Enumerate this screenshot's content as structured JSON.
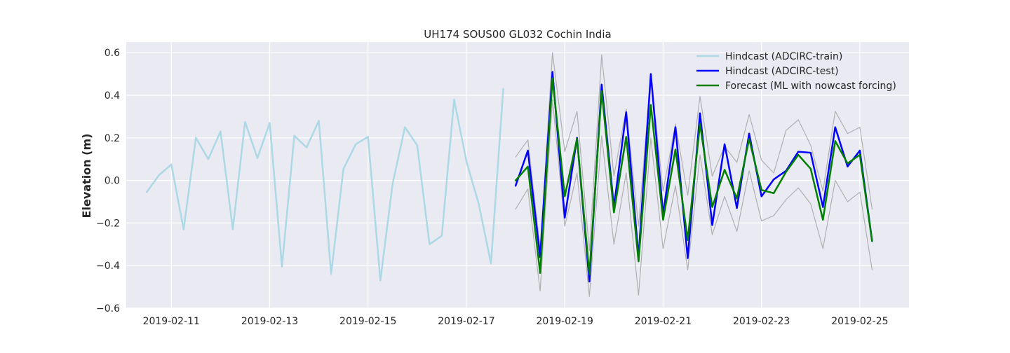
{
  "chart_data": {
    "type": "line",
    "title": "UH174 SOUS00 GL032 Cochin India",
    "xlabel": "",
    "ylabel": "Elevation (m)",
    "x_range": [
      "2019-02-10T02:00",
      "2019-02-26T00:00"
    ],
    "ylim": [
      -0.6,
      0.65
    ],
    "x_ticks": [
      "2019-02-11",
      "2019-02-13",
      "2019-02-15",
      "2019-02-17",
      "2019-02-19",
      "2019-02-21",
      "2019-02-23",
      "2019-02-25"
    ],
    "y_ticks": [
      -0.6,
      -0.4,
      -0.2,
      0.0,
      0.2,
      0.4,
      0.6
    ],
    "y_tick_labels": [
      "−0.6",
      "−0.4",
      "−0.2",
      "0.0",
      "0.2",
      "0.4",
      "0.6"
    ],
    "grid": true,
    "legend_position": "top-right",
    "background": "#eaeaf2",
    "series": [
      {
        "name": "Hindcast (ADCIRC-train)",
        "color": "#add8e6",
        "width": 2.5,
        "x": [
          "2019-02-10T12:00",
          "2019-02-10T18:00",
          "2019-02-11T00:00",
          "2019-02-11T06:00",
          "2019-02-11T12:00",
          "2019-02-11T18:00",
          "2019-02-12T00:00",
          "2019-02-12T06:00",
          "2019-02-12T12:00",
          "2019-02-12T18:00",
          "2019-02-13T00:00",
          "2019-02-13T06:00",
          "2019-02-13T12:00",
          "2019-02-13T18:00",
          "2019-02-14T00:00",
          "2019-02-14T06:00",
          "2019-02-14T12:00",
          "2019-02-14T18:00",
          "2019-02-15T00:00",
          "2019-02-15T06:00",
          "2019-02-15T12:00",
          "2019-02-15T18:00",
          "2019-02-16T00:00",
          "2019-02-16T06:00",
          "2019-02-16T12:00",
          "2019-02-16T18:00",
          "2019-02-17T00:00",
          "2019-02-17T06:00",
          "2019-02-17T12:00",
          "2019-02-17T18:00"
        ],
        "y": [
          -0.055,
          0.025,
          0.075,
          -0.23,
          0.2,
          0.1,
          0.23,
          -0.23,
          0.275,
          0.105,
          0.27,
          -0.405,
          0.21,
          0.155,
          0.28,
          -0.44,
          0.055,
          0.17,
          0.205,
          -0.47,
          -0.015,
          0.25,
          0.165,
          -0.3,
          -0.26,
          0.38,
          0.09,
          -0.11,
          -0.39,
          0.43
        ]
      },
      {
        "name": "Hindcast (ADCIRC-test)",
        "color": "#0000ff",
        "width": 2.5,
        "x": [
          "2019-02-18T00:00",
          "2019-02-18T06:00",
          "2019-02-18T12:00",
          "2019-02-18T18:00",
          "2019-02-19T00:00",
          "2019-02-19T06:00",
          "2019-02-19T12:00",
          "2019-02-19T18:00",
          "2019-02-20T00:00",
          "2019-02-20T06:00",
          "2019-02-20T12:00",
          "2019-02-20T18:00",
          "2019-02-21T00:00",
          "2019-02-21T06:00",
          "2019-02-21T12:00",
          "2019-02-21T18:00",
          "2019-02-22T00:00",
          "2019-02-22T06:00",
          "2019-02-22T12:00",
          "2019-02-22T18:00",
          "2019-02-23T00:00",
          "2019-02-23T06:00",
          "2019-02-23T12:00",
          "2019-02-23T18:00",
          "2019-02-24T00:00",
          "2019-02-24T06:00",
          "2019-02-24T12:00",
          "2019-02-24T18:00",
          "2019-02-25T00:00",
          "2019-02-25T06:00"
        ],
        "y": [
          -0.025,
          0.14,
          -0.36,
          0.51,
          -0.175,
          0.2,
          -0.475,
          0.45,
          -0.125,
          0.32,
          -0.36,
          0.5,
          -0.16,
          0.25,
          -0.365,
          0.315,
          -0.21,
          0.17,
          -0.13,
          0.22,
          -0.075,
          0.005,
          0.045,
          0.135,
          0.13,
          -0.125,
          0.25,
          0.065,
          0.14,
          -0.285
        ]
      },
      {
        "name": "Forecast (ML with nowcast forcing)",
        "color": "#008000",
        "width": 2.5,
        "x": [
          "2019-02-18T00:00",
          "2019-02-18T06:00",
          "2019-02-18T12:00",
          "2019-02-18T18:00",
          "2019-02-19T00:00",
          "2019-02-19T06:00",
          "2019-02-19T12:00",
          "2019-02-19T18:00",
          "2019-02-20T00:00",
          "2019-02-20T06:00",
          "2019-02-20T12:00",
          "2019-02-20T18:00",
          "2019-02-21T00:00",
          "2019-02-21T06:00",
          "2019-02-21T12:00",
          "2019-02-21T18:00",
          "2019-02-22T00:00",
          "2019-02-22T06:00",
          "2019-02-22T12:00",
          "2019-02-22T18:00",
          "2019-02-23T00:00",
          "2019-02-23T06:00",
          "2019-02-23T12:00",
          "2019-02-23T18:00",
          "2019-02-24T00:00",
          "2019-02-24T06:00",
          "2019-02-24T12:00",
          "2019-02-24T18:00",
          "2019-02-25T00:00",
          "2019-02-25T06:00"
        ],
        "y": [
          0.0,
          0.065,
          -0.435,
          0.48,
          -0.075,
          0.195,
          -0.44,
          0.42,
          -0.15,
          0.205,
          -0.38,
          0.355,
          -0.185,
          0.145,
          -0.28,
          0.265,
          -0.125,
          0.05,
          -0.085,
          0.195,
          -0.045,
          -0.06,
          0.04,
          0.12,
          0.055,
          -0.185,
          0.185,
          0.08,
          0.12,
          -0.285
        ]
      },
      {
        "color": "#b0b0b0",
        "width": 1.2,
        "x": [
          "2019-02-18T00:00",
          "2019-02-18T06:00",
          "2019-02-18T12:00",
          "2019-02-18T18:00",
          "2019-02-19T00:00",
          "2019-02-19T06:00",
          "2019-02-19T12:00",
          "2019-02-19T18:00",
          "2019-02-20T00:00",
          "2019-02-20T06:00",
          "2019-02-20T12:00",
          "2019-02-20T18:00",
          "2019-02-21T00:00",
          "2019-02-21T06:00",
          "2019-02-21T12:00",
          "2019-02-21T18:00",
          "2019-02-22T00:00",
          "2019-02-22T06:00",
          "2019-02-22T12:00",
          "2019-02-22T18:00",
          "2019-02-23T00:00",
          "2019-02-23T06:00",
          "2019-02-23T12:00",
          "2019-02-23T18:00",
          "2019-02-24T00:00",
          "2019-02-24T06:00",
          "2019-02-24T12:00",
          "2019-02-24T18:00",
          "2019-02-25T00:00",
          "2019-02-25T06:00"
        ],
        "y": [
          0.11,
          0.19,
          -0.32,
          0.6,
          0.135,
          0.325,
          -0.33,
          0.59,
          0.02,
          0.335,
          -0.215,
          0.5,
          -0.05,
          0.265,
          -0.07,
          0.395,
          0.02,
          0.16,
          0.085,
          0.31,
          0.095,
          0.035,
          0.235,
          0.285,
          0.165,
          -0.05,
          0.325,
          0.22,
          0.25,
          -0.135
        ]
      },
      {
        "color": "#b0b0b0",
        "width": 1.2,
        "x": [
          "2019-02-18T00:00",
          "2019-02-18T06:00",
          "2019-02-18T12:00",
          "2019-02-18T18:00",
          "2019-02-19T00:00",
          "2019-02-19T06:00",
          "2019-02-19T12:00",
          "2019-02-19T18:00",
          "2019-02-20T00:00",
          "2019-02-20T06:00",
          "2019-02-20T12:00",
          "2019-02-20T18:00",
          "2019-02-21T00:00",
          "2019-02-21T06:00",
          "2019-02-21T12:00",
          "2019-02-21T18:00",
          "2019-02-22T00:00",
          "2019-02-22T06:00",
          "2019-02-22T12:00",
          "2019-02-22T18:00",
          "2019-02-23T00:00",
          "2019-02-23T06:00",
          "2019-02-23T12:00",
          "2019-02-23T18:00",
          "2019-02-24T00:00",
          "2019-02-24T06:00",
          "2019-02-24T12:00",
          "2019-02-24T18:00",
          "2019-02-25T00:00",
          "2019-02-25T06:00"
        ],
        "y": [
          -0.135,
          -0.04,
          -0.52,
          0.38,
          -0.215,
          0.035,
          -0.545,
          0.21,
          -0.3,
          0.035,
          -0.54,
          0.2,
          -0.32,
          -0.025,
          -0.42,
          0.12,
          -0.255,
          -0.075,
          -0.24,
          0.045,
          -0.19,
          -0.165,
          -0.09,
          -0.035,
          -0.11,
          -0.32,
          0.0,
          -0.1,
          -0.055,
          -0.42
        ]
      }
    ]
  }
}
